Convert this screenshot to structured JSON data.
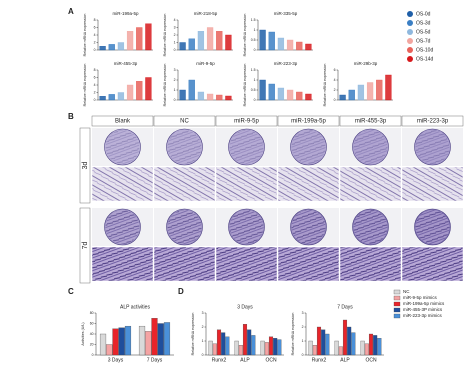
{
  "figure": {
    "panel_labels": [
      "A",
      "B",
      "C",
      "D"
    ]
  },
  "time_legend": {
    "labels": [
      "OS-0d",
      "OS-3d",
      "OS-5d",
      "OS-7d",
      "OS-10d",
      "OS-14d"
    ],
    "colors": [
      "#1f5fa8",
      "#3b7fc4",
      "#8fb8de",
      "#f2a6a0",
      "#e8625a",
      "#d7191c"
    ]
  },
  "panel_b": {
    "columns": [
      "Blank",
      "NC",
      "miR-9-5p",
      "miR-199a-5p",
      "miR-455-3p",
      "miR-223-3p"
    ],
    "rows": [
      "3d",
      "7d"
    ]
  },
  "chart_data": [
    {
      "type": "bar",
      "title": "miR-199a-5p",
      "ylabel": "Relative mRNA expression",
      "values": [
        1,
        1.5,
        2,
        5,
        6,
        7
      ],
      "ylim": [
        0,
        8
      ],
      "yticks": [
        0,
        2,
        4,
        6,
        8
      ]
    },
    {
      "type": "bar",
      "title": "miR-218-5p",
      "ylabel": "Relative mRNA expression",
      "values": [
        1,
        1.5,
        2.5,
        3,
        2.5,
        2
      ],
      "ylim": [
        0,
        4
      ],
      "yticks": [
        0,
        1,
        2,
        3,
        4
      ]
    },
    {
      "type": "bar",
      "title": "miR-335-5p",
      "ylabel": "Relative mRNA expression",
      "values": [
        1,
        0.9,
        0.6,
        0.5,
        0.4,
        0.3
      ],
      "ylim": [
        0,
        1.5
      ],
      "yticks": [
        0,
        0.5,
        1,
        1.5
      ]
    },
    {
      "type": "bar",
      "title": "miR-455-3p",
      "ylabel": "Relative mRNA expression",
      "values": [
        1,
        1.5,
        2,
        4,
        5,
        6
      ],
      "ylim": [
        0,
        8
      ],
      "yticks": [
        0,
        2,
        4,
        6,
        8
      ]
    },
    {
      "type": "bar",
      "title": "miR-9-5p",
      "ylabel": "Relative mRNA expression",
      "values": [
        1,
        2,
        0.8,
        0.6,
        0.5,
        0.4
      ],
      "ylim": [
        0,
        3
      ],
      "yticks": [
        0,
        1,
        2,
        3
      ]
    },
    {
      "type": "bar",
      "title": "miR-223-3p",
      "ylabel": "Relative mRNA expression",
      "values": [
        1,
        0.8,
        0.6,
        0.5,
        0.4,
        0.3
      ],
      "ylim": [
        0,
        1.5
      ],
      "yticks": [
        0,
        0.5,
        1,
        1.5
      ]
    },
    {
      "type": "bar",
      "title": "miR-29b-3p",
      "ylabel": "Relative mRNA expression",
      "values": [
        1,
        2,
        3,
        3.5,
        4,
        5
      ],
      "ylim": [
        0,
        6
      ],
      "yticks": [
        0,
        2,
        4,
        6
      ]
    },
    {
      "type": "grouped-bar",
      "title": "ALP activities",
      "ylabel": "Activities (U/L)",
      "categories": [
        "3 Days",
        "7 Days"
      ],
      "series": [
        {
          "name": "NC",
          "color": "#d9d9d9",
          "values": [
            40,
            55
          ]
        },
        {
          "name": "miR-9-5p mimics",
          "color": "#f4a3a3",
          "values": [
            20,
            45
          ]
        },
        {
          "name": "miR-199a-5p mimics",
          "color": "#e8242a",
          "values": [
            50,
            70
          ]
        },
        {
          "name": "miR-455-3P mimics",
          "color": "#1f4e9c",
          "values": [
            52,
            60
          ]
        },
        {
          "name": "miR-223-3p mimics",
          "color": "#4a90d9",
          "values": [
            55,
            62
          ]
        }
      ],
      "ylim": [
        0,
        80
      ],
      "yticks": [
        0,
        20,
        40,
        60,
        80
      ]
    },
    {
      "type": "grouped-bar",
      "title": "3 Days",
      "ylabel": "Relative mRNA expression",
      "categories": [
        "Runx2",
        "ALP",
        "OCN"
      ],
      "series": [
        {
          "name": "NC",
          "color": "#d9d9d9",
          "values": [
            1,
            1,
            1
          ]
        },
        {
          "name": "miR-9-5p mimics",
          "color": "#f4a3a3",
          "values": [
            0.8,
            0.7,
            0.9
          ]
        },
        {
          "name": "miR-199a-5p mimics",
          "color": "#e8242a",
          "values": [
            1.8,
            2.2,
            1.3
          ]
        },
        {
          "name": "miR-455-3P mimics",
          "color": "#1f4e9c",
          "values": [
            1.6,
            1.8,
            1.2
          ]
        },
        {
          "name": "miR-223-3p mimics",
          "color": "#4a90d9",
          "values": [
            1.3,
            1.4,
            1.1
          ]
        }
      ],
      "ylim": [
        0,
        3
      ],
      "yticks": [
        0,
        1,
        2,
        3
      ]
    },
    {
      "type": "grouped-bar",
      "title": "7 Days",
      "ylabel": "Relative mRNA expression",
      "categories": [
        "Runx2",
        "ALP",
        "OCN"
      ],
      "series": [
        {
          "name": "NC",
          "color": "#d9d9d9",
          "values": [
            1,
            1,
            1
          ]
        },
        {
          "name": "miR-9-5p mimics",
          "color": "#f4a3a3",
          "values": [
            0.7,
            0.6,
            0.8
          ]
        },
        {
          "name": "miR-199a-5p mimics",
          "color": "#e8242a",
          "values": [
            2,
            2.5,
            1.5
          ]
        },
        {
          "name": "miR-455-3P mimics",
          "color": "#1f4e9c",
          "values": [
            1.8,
            2,
            1.4
          ]
        },
        {
          "name": "miR-223-3p mimics",
          "color": "#4a90d9",
          "values": [
            1.5,
            1.6,
            1.2
          ]
        }
      ],
      "ylim": [
        0,
        3
      ],
      "yticks": [
        0,
        1,
        2,
        3
      ]
    }
  ]
}
